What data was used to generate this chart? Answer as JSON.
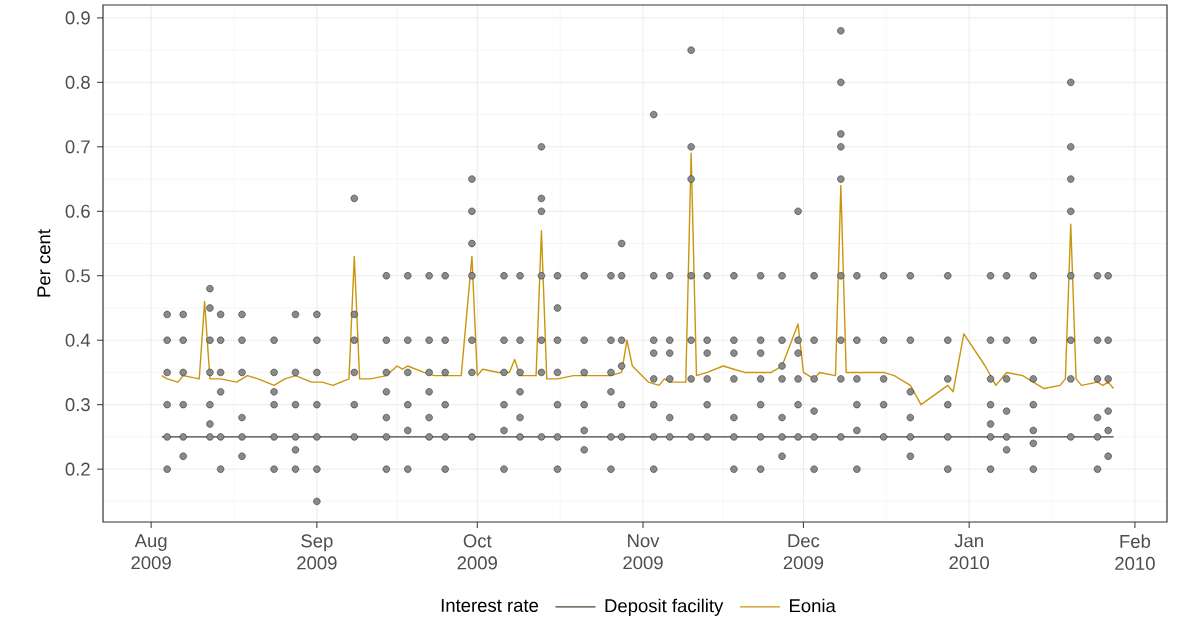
{
  "chart_data": {
    "type": "scatter",
    "ylabel": "Per cent",
    "legend_title": "Interest rate",
    "legend": "bottom",
    "grid": true,
    "xlim": [
      "2009-07-23",
      "2010-02-07"
    ],
    "ylim": [
      0.118,
      0.92
    ],
    "xticks": [
      {
        "value": "2009-08-01",
        "label": "Aug 2009"
      },
      {
        "value": "2009-09-01",
        "label": "Sep 2009"
      },
      {
        "value": "2009-10-01",
        "label": "Oct 2009"
      },
      {
        "value": "2009-11-01",
        "label": "Nov 2009"
      },
      {
        "value": "2009-12-01",
        "label": "Dec 2009"
      },
      {
        "value": "2010-01-01",
        "label": "Jan 2010"
      },
      {
        "value": "2010-02-01",
        "label": "Feb 2010"
      }
    ],
    "yticks": [
      0.2,
      0.3,
      0.4,
      0.5,
      0.6,
      0.7,
      0.8,
      0.9
    ],
    "series": [
      {
        "color": "#8a8a8a",
        "x": [
          "2009-08-04",
          "2009-08-04",
          "2009-08-04",
          "2009-08-04",
          "2009-08-04",
          "2009-08-04",
          "2009-08-07",
          "2009-08-07",
          "2009-08-07",
          "2009-08-07",
          "2009-08-07",
          "2009-08-07",
          "2009-08-12",
          "2009-08-12",
          "2009-08-12",
          "2009-08-12",
          "2009-08-12",
          "2009-08-12",
          "2009-08-12",
          "2009-08-14",
          "2009-08-14",
          "2009-08-14",
          "2009-08-14",
          "2009-08-14",
          "2009-08-14",
          "2009-08-18",
          "2009-08-18",
          "2009-08-18",
          "2009-08-18",
          "2009-08-18",
          "2009-08-18",
          "2009-08-24",
          "2009-08-24",
          "2009-08-24",
          "2009-08-24",
          "2009-08-24",
          "2009-08-24",
          "2009-08-28",
          "2009-08-28",
          "2009-08-28",
          "2009-08-28",
          "2009-08-28",
          "2009-08-28",
          "2009-09-01",
          "2009-09-01",
          "2009-09-01",
          "2009-09-01",
          "2009-09-01",
          "2009-09-01",
          "2009-09-01",
          "2009-09-08",
          "2009-09-08",
          "2009-09-08",
          "2009-09-08",
          "2009-09-08",
          "2009-09-08",
          "2009-09-14",
          "2009-09-14",
          "2009-09-14",
          "2009-09-14",
          "2009-09-14",
          "2009-09-14",
          "2009-09-14",
          "2009-09-18",
          "2009-09-18",
          "2009-09-18",
          "2009-09-18",
          "2009-09-18",
          "2009-09-18",
          "2009-09-22",
          "2009-09-22",
          "2009-09-22",
          "2009-09-22",
          "2009-09-22",
          "2009-09-22",
          "2009-09-25",
          "2009-09-25",
          "2009-09-25",
          "2009-09-25",
          "2009-09-25",
          "2009-09-25",
          "2009-09-30",
          "2009-09-30",
          "2009-09-30",
          "2009-09-30",
          "2009-09-30",
          "2009-09-30",
          "2009-09-30",
          "2009-10-06",
          "2009-10-06",
          "2009-10-06",
          "2009-10-06",
          "2009-10-06",
          "2009-10-06",
          "2009-10-09",
          "2009-10-09",
          "2009-10-09",
          "2009-10-09",
          "2009-10-09",
          "2009-10-09",
          "2009-10-13",
          "2009-10-13",
          "2009-10-13",
          "2009-10-13",
          "2009-10-13",
          "2009-10-13",
          "2009-10-13",
          "2009-10-16",
          "2009-10-16",
          "2009-10-16",
          "2009-10-16",
          "2009-10-16",
          "2009-10-16",
          "2009-10-16",
          "2009-10-21",
          "2009-10-21",
          "2009-10-21",
          "2009-10-21",
          "2009-10-21",
          "2009-10-21",
          "2009-10-26",
          "2009-10-26",
          "2009-10-26",
          "2009-10-26",
          "2009-10-26",
          "2009-10-26",
          "2009-10-28",
          "2009-10-28",
          "2009-10-28",
          "2009-10-28",
          "2009-10-28",
          "2009-10-28",
          "2009-11-03",
          "2009-11-03",
          "2009-11-03",
          "2009-11-03",
          "2009-11-03",
          "2009-11-03",
          "2009-11-03",
          "2009-11-03",
          "2009-11-06",
          "2009-11-06",
          "2009-11-06",
          "2009-11-06",
          "2009-11-06",
          "2009-11-06",
          "2009-11-10",
          "2009-11-10",
          "2009-11-10",
          "2009-11-10",
          "2009-11-10",
          "2009-11-10",
          "2009-11-10",
          "2009-11-13",
          "2009-11-13",
          "2009-11-13",
          "2009-11-13",
          "2009-11-13",
          "2009-11-13",
          "2009-11-18",
          "2009-11-18",
          "2009-11-18",
          "2009-11-18",
          "2009-11-18",
          "2009-11-18",
          "2009-11-18",
          "2009-11-23",
          "2009-11-23",
          "2009-11-23",
          "2009-11-23",
          "2009-11-23",
          "2009-11-23",
          "2009-11-23",
          "2009-11-27",
          "2009-11-27",
          "2009-11-27",
          "2009-11-27",
          "2009-11-27",
          "2009-11-27",
          "2009-11-27",
          "2009-11-30",
          "2009-11-30",
          "2009-11-30",
          "2009-11-30",
          "2009-11-30",
          "2009-11-30",
          "2009-12-03",
          "2009-12-03",
          "2009-12-03",
          "2009-12-03",
          "2009-12-03",
          "2009-12-03",
          "2009-12-08",
          "2009-12-08",
          "2009-12-08",
          "2009-12-08",
          "2009-12-08",
          "2009-12-08",
          "2009-12-08",
          "2009-12-08",
          "2009-12-08",
          "2009-12-11",
          "2009-12-11",
          "2009-12-11",
          "2009-12-11",
          "2009-12-11",
          "2009-12-11",
          "2009-12-16",
          "2009-12-16",
          "2009-12-16",
          "2009-12-16",
          "2009-12-16",
          "2009-12-21",
          "2009-12-21",
          "2009-12-21",
          "2009-12-21",
          "2009-12-21",
          "2009-12-21",
          "2009-12-28",
          "2009-12-28",
          "2009-12-28",
          "2009-12-28",
          "2009-12-28",
          "2009-12-28",
          "2010-01-05",
          "2010-01-05",
          "2010-01-05",
          "2010-01-05",
          "2010-01-05",
          "2010-01-05",
          "2010-01-05",
          "2010-01-08",
          "2010-01-08",
          "2010-01-08",
          "2010-01-08",
          "2010-01-08",
          "2010-01-08",
          "2010-01-13",
          "2010-01-13",
          "2010-01-13",
          "2010-01-13",
          "2010-01-13",
          "2010-01-13",
          "2010-01-13",
          "2010-01-20",
          "2010-01-20",
          "2010-01-20",
          "2010-01-20",
          "2010-01-20",
          "2010-01-20",
          "2010-01-20",
          "2010-01-20",
          "2010-01-25",
          "2010-01-25",
          "2010-01-25",
          "2010-01-25",
          "2010-01-25",
          "2010-01-25",
          "2010-01-27",
          "2010-01-27",
          "2010-01-27",
          "2010-01-27",
          "2010-01-27",
          "2010-01-27"
        ],
        "values": [
          0.44,
          0.4,
          0.35,
          0.3,
          0.25,
          0.2,
          0.44,
          0.4,
          0.35,
          0.3,
          0.25,
          0.22,
          0.45,
          0.4,
          0.35,
          0.3,
          0.25,
          0.27,
          0.48,
          0.44,
          0.4,
          0.35,
          0.32,
          0.25,
          0.2,
          0.44,
          0.4,
          0.35,
          0.28,
          0.25,
          0.22,
          0.4,
          0.35,
          0.32,
          0.3,
          0.25,
          0.2,
          0.44,
          0.35,
          0.3,
          0.25,
          0.23,
          0.2,
          0.44,
          0.4,
          0.35,
          0.3,
          0.25,
          0.2,
          0.15,
          0.62,
          0.44,
          0.4,
          0.35,
          0.3,
          0.25,
          0.5,
          0.4,
          0.35,
          0.32,
          0.28,
          0.25,
          0.2,
          0.5,
          0.4,
          0.35,
          0.3,
          0.26,
          0.2,
          0.5,
          0.4,
          0.35,
          0.32,
          0.28,
          0.25,
          0.5,
          0.4,
          0.35,
          0.3,
          0.25,
          0.2,
          0.65,
          0.6,
          0.55,
          0.5,
          0.4,
          0.35,
          0.25,
          0.5,
          0.4,
          0.35,
          0.3,
          0.26,
          0.2,
          0.5,
          0.4,
          0.35,
          0.32,
          0.28,
          0.25,
          0.7,
          0.62,
          0.6,
          0.5,
          0.4,
          0.35,
          0.25,
          0.5,
          0.45,
          0.4,
          0.35,
          0.3,
          0.25,
          0.2,
          0.5,
          0.4,
          0.35,
          0.3,
          0.26,
          0.23,
          0.5,
          0.4,
          0.35,
          0.32,
          0.25,
          0.2,
          0.55,
          0.5,
          0.4,
          0.36,
          0.3,
          0.25,
          0.75,
          0.5,
          0.4,
          0.38,
          0.34,
          0.3,
          0.25,
          0.2,
          0.5,
          0.4,
          0.38,
          0.34,
          0.28,
          0.25,
          0.85,
          0.7,
          0.65,
          0.5,
          0.4,
          0.34,
          0.25,
          0.5,
          0.4,
          0.38,
          0.34,
          0.3,
          0.25,
          0.5,
          0.4,
          0.38,
          0.34,
          0.28,
          0.25,
          0.2,
          0.5,
          0.4,
          0.38,
          0.34,
          0.3,
          0.25,
          0.2,
          0.5,
          0.4,
          0.36,
          0.34,
          0.28,
          0.25,
          0.22,
          0.6,
          0.4,
          0.38,
          0.34,
          0.3,
          0.25,
          0.5,
          0.4,
          0.34,
          0.29,
          0.25,
          0.2,
          0.88,
          0.8,
          0.72,
          0.7,
          0.65,
          0.5,
          0.4,
          0.34,
          0.25,
          0.5,
          0.4,
          0.34,
          0.3,
          0.26,
          0.2,
          0.5,
          0.4,
          0.34,
          0.3,
          0.25,
          0.5,
          0.4,
          0.32,
          0.28,
          0.25,
          0.22,
          0.5,
          0.4,
          0.34,
          0.3,
          0.25,
          0.2,
          0.5,
          0.4,
          0.34,
          0.3,
          0.27,
          0.25,
          0.2,
          0.5,
          0.4,
          0.34,
          0.29,
          0.25,
          0.23,
          0.5,
          0.4,
          0.34,
          0.3,
          0.26,
          0.24,
          0.2,
          0.8,
          0.7,
          0.65,
          0.6,
          0.5,
          0.4,
          0.34,
          0.25,
          0.5,
          0.4,
          0.34,
          0.28,
          0.25,
          0.2,
          0.5,
          0.4,
          0.34,
          0.29,
          0.26,
          0.22
        ]
      },
      {
        "type": "line",
        "name": "Deposit facility",
        "color": "#4a4030",
        "x": [
          "2009-08-03",
          "2010-01-28"
        ],
        "values": [
          0.25,
          0.25
        ]
      },
      {
        "type": "line",
        "name": "Eonia",
        "color": "#c8960f",
        "x": [
          "2009-08-03",
          "2009-08-04",
          "2009-08-06",
          "2009-08-07",
          "2009-08-10",
          "2009-08-11",
          "2009-08-12",
          "2009-08-14",
          "2009-08-17",
          "2009-08-19",
          "2009-08-21",
          "2009-08-24",
          "2009-08-26",
          "2009-08-28",
          "2009-08-31",
          "2009-09-02",
          "2009-09-04",
          "2009-09-07",
          "2009-09-08",
          "2009-09-09",
          "2009-09-11",
          "2009-09-14",
          "2009-09-16",
          "2009-09-17",
          "2009-09-18",
          "2009-09-21",
          "2009-09-23",
          "2009-09-25",
          "2009-09-28",
          "2009-09-30",
          "2009-10-01",
          "2009-10-02",
          "2009-10-05",
          "2009-10-07",
          "2009-10-08",
          "2009-10-09",
          "2009-10-12",
          "2009-10-13",
          "2009-10-14",
          "2009-10-16",
          "2009-10-19",
          "2009-10-21",
          "2009-10-23",
          "2009-10-26",
          "2009-10-28",
          "2009-10-29",
          "2009-10-30",
          "2009-11-02",
          "2009-11-04",
          "2009-11-05",
          "2009-11-06",
          "2009-11-09",
          "2009-11-10",
          "2009-11-11",
          "2009-11-13",
          "2009-11-16",
          "2009-11-18",
          "2009-11-20",
          "2009-11-23",
          "2009-11-25",
          "2009-11-27",
          "2009-11-30",
          "2009-12-01",
          "2009-12-02",
          "2009-12-03",
          "2009-12-04",
          "2009-12-07",
          "2009-12-08",
          "2009-12-09",
          "2009-12-11",
          "2009-12-14",
          "2009-12-16",
          "2009-12-18",
          "2009-12-21",
          "2009-12-23",
          "2009-12-28",
          "2009-12-29",
          "2009-12-31",
          "2010-01-04",
          "2010-01-06",
          "2010-01-08",
          "2010-01-11",
          "2010-01-13",
          "2010-01-15",
          "2010-01-18",
          "2010-01-19",
          "2010-01-20",
          "2010-01-21",
          "2010-01-22",
          "2010-01-25",
          "2010-01-26",
          "2010-01-27",
          "2010-01-28"
        ],
        "values": [
          0.345,
          0.34,
          0.335,
          0.345,
          0.34,
          0.46,
          0.34,
          0.34,
          0.335,
          0.345,
          0.34,
          0.33,
          0.34,
          0.345,
          0.335,
          0.335,
          0.33,
          0.34,
          0.53,
          0.34,
          0.34,
          0.345,
          0.36,
          0.355,
          0.36,
          0.35,
          0.345,
          0.345,
          0.345,
          0.53,
          0.345,
          0.355,
          0.35,
          0.35,
          0.37,
          0.345,
          0.345,
          0.57,
          0.34,
          0.34,
          0.345,
          0.345,
          0.345,
          0.345,
          0.35,
          0.4,
          0.36,
          0.335,
          0.33,
          0.34,
          0.335,
          0.335,
          0.69,
          0.345,
          0.35,
          0.36,
          0.355,
          0.35,
          0.35,
          0.35,
          0.36,
          0.425,
          0.35,
          0.345,
          0.34,
          0.35,
          0.345,
          0.64,
          0.35,
          0.35,
          0.35,
          0.35,
          0.345,
          0.33,
          0.3,
          0.33,
          0.32,
          0.41,
          0.36,
          0.33,
          0.35,
          0.345,
          0.335,
          0.325,
          0.33,
          0.34,
          0.58,
          0.34,
          0.33,
          0.335,
          0.33,
          0.335,
          0.325
        ]
      }
    ]
  }
}
